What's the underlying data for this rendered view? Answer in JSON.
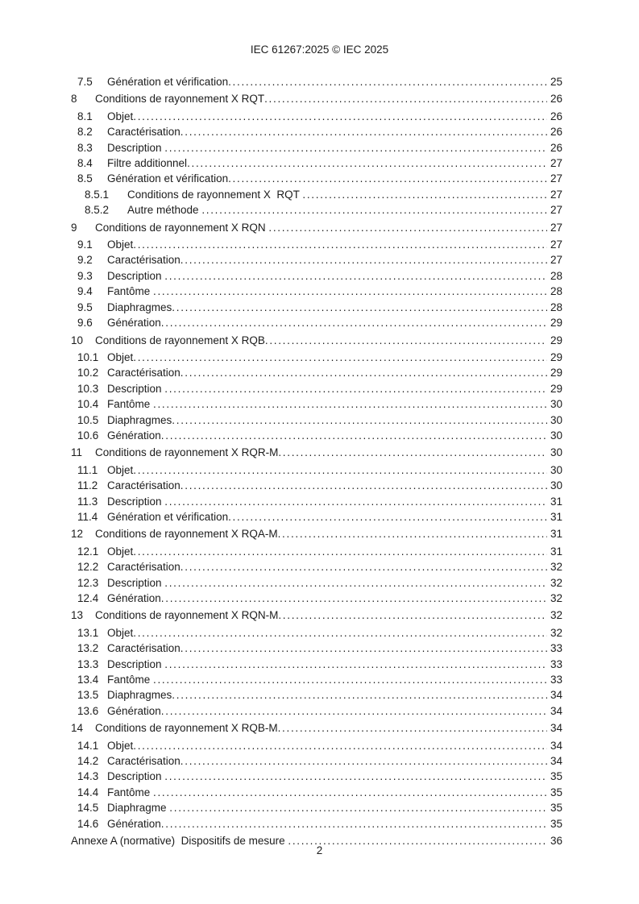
{
  "page": {
    "header": "IEC 61267:2025 © IEC 2025",
    "footer_page_number": "2"
  },
  "toc": {
    "entries": [
      {
        "level": "2",
        "number": "7.5",
        "title": "Génération et vérification",
        "page": "25"
      },
      {
        "level": "1",
        "number": "8",
        "title": "Conditions de rayonnement X RQT",
        "page": "26"
      },
      {
        "level": "2",
        "number": "8.1",
        "title": "Objet",
        "page": "26"
      },
      {
        "level": "2",
        "number": "8.2",
        "title": "Caractérisation",
        "page": "26"
      },
      {
        "level": "2",
        "number": "8.3",
        "title": "Description ",
        "page": "26"
      },
      {
        "level": "2",
        "number": "8.4",
        "title": "Filtre additionnel",
        "page": "27"
      },
      {
        "level": "2",
        "number": "8.5",
        "title": "Génération et vérification",
        "page": "27"
      },
      {
        "level": "3",
        "number": "8.5.1",
        "title": "Conditions de rayonnement X  RQT ",
        "page": "27"
      },
      {
        "level": "3",
        "number": "8.5.2",
        "title": "Autre méthode ",
        "page": "27"
      },
      {
        "level": "1",
        "number": "9",
        "title": "Conditions de rayonnement X RQN ",
        "page": "27"
      },
      {
        "level": "2",
        "number": "9.1",
        "title": "Objet",
        "page": "27"
      },
      {
        "level": "2",
        "number": "9.2",
        "title": "Caractérisation",
        "page": "27"
      },
      {
        "level": "2",
        "number": "9.3",
        "title": "Description ",
        "page": "28"
      },
      {
        "level": "2",
        "number": "9.4",
        "title": "Fantôme ",
        "page": "28"
      },
      {
        "level": "2",
        "number": "9.5",
        "title": "Diaphragmes",
        "page": "28"
      },
      {
        "level": "2",
        "number": "9.6",
        "title": "Génération",
        "page": "29"
      },
      {
        "level": "1",
        "number": "10",
        "title": "Conditions de rayonnement X RQB",
        "page": "29"
      },
      {
        "level": "2",
        "number": "10.1",
        "title": "Objet",
        "page": "29"
      },
      {
        "level": "2",
        "number": "10.2",
        "title": "Caractérisation",
        "page": "29"
      },
      {
        "level": "2",
        "number": "10.3",
        "title": "Description ",
        "page": "29"
      },
      {
        "level": "2",
        "number": "10.4",
        "title": "Fantôme ",
        "page": "30"
      },
      {
        "level": "2",
        "number": "10.5",
        "title": "Diaphragmes",
        "page": "30"
      },
      {
        "level": "2",
        "number": "10.6",
        "title": "Génération",
        "page": "30"
      },
      {
        "level": "1",
        "number": "11",
        "title": "Conditions de rayonnement X RQR-M",
        "page": "30"
      },
      {
        "level": "2",
        "number": "11.1",
        "title": "Objet",
        "page": "30"
      },
      {
        "level": "2",
        "number": "11.2",
        "title": "Caractérisation",
        "page": "30"
      },
      {
        "level": "2",
        "number": "11.3",
        "title": "Description ",
        "page": "31"
      },
      {
        "level": "2",
        "number": "11.4",
        "title": "Génération et vérification",
        "page": "31"
      },
      {
        "level": "1",
        "number": "12",
        "title": "Conditions de rayonnement X RQA-M",
        "page": "31"
      },
      {
        "level": "2",
        "number": "12.1",
        "title": "Objet",
        "page": "31"
      },
      {
        "level": "2",
        "number": "12.2",
        "title": "Caractérisation",
        "page": "32"
      },
      {
        "level": "2",
        "number": "12.3",
        "title": "Description ",
        "page": "32"
      },
      {
        "level": "2",
        "number": "12.4",
        "title": "Génération",
        "page": "32"
      },
      {
        "level": "1",
        "number": "13",
        "title": "Conditions de rayonnement X RQN-M",
        "page": "32"
      },
      {
        "level": "2",
        "number": "13.1",
        "title": "Objet",
        "page": "32"
      },
      {
        "level": "2",
        "number": "13.2",
        "title": "Caractérisation",
        "page": "33"
      },
      {
        "level": "2",
        "number": "13.3",
        "title": "Description ",
        "page": "33"
      },
      {
        "level": "2",
        "number": "13.4",
        "title": "Fantôme ",
        "page": "33"
      },
      {
        "level": "2",
        "number": "13.5",
        "title": "Diaphragmes",
        "page": "34"
      },
      {
        "level": "2",
        "number": "13.6",
        "title": "Génération",
        "page": "34"
      },
      {
        "level": "1",
        "number": "14",
        "title": "Conditions de rayonnement X RQB-M",
        "page": "34"
      },
      {
        "level": "2",
        "number": "14.1",
        "title": "Objet",
        "page": "34"
      },
      {
        "level": "2",
        "number": "14.2",
        "title": "Caractérisation",
        "page": "34"
      },
      {
        "level": "2",
        "number": "14.3",
        "title": "Description ",
        "page": "35"
      },
      {
        "level": "2",
        "number": "14.4",
        "title": "Fantôme ",
        "page": "35"
      },
      {
        "level": "2",
        "number": "14.5",
        "title": "Diaphragme ",
        "page": "35"
      },
      {
        "level": "2",
        "number": "14.6",
        "title": "Génération",
        "page": "35"
      },
      {
        "level": "annex",
        "number": "",
        "title": "Annexe A (normative)  Dispositifs de mesure ",
        "page": "36"
      }
    ]
  }
}
